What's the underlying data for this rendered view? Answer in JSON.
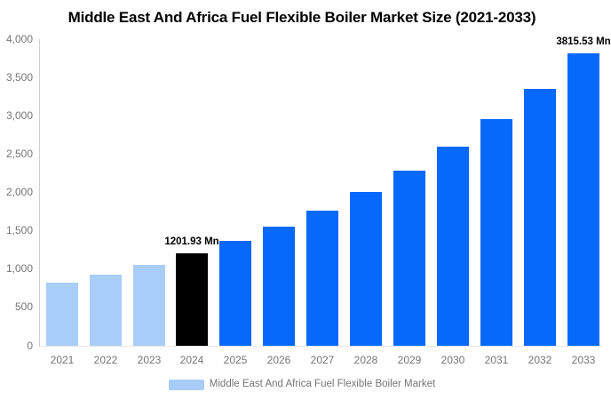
{
  "title": "Middle East And Africa Fuel Flexible Boiler Market Size (2021-2033)",
  "legend": {
    "label": "Middle East And Africa Fuel Flexible Boiler Market"
  },
  "colors": {
    "historical": "#a8cdf8",
    "current": "#000000",
    "forecast": "#0768fc",
    "title_text": "#000000",
    "tick_text": "#757575",
    "data_label_text": "#000000",
    "y_axis_line": "#cfcfcf",
    "x_axis_line": "#e6e6e6",
    "background": "#ffffff"
  },
  "y_axis": {
    "tick_labels": [
      "4,000",
      "3,500",
      "3,000",
      "2,500",
      "2,000",
      "1,500",
      "1,000",
      "500",
      "0"
    ]
  },
  "chart_data": {
    "type": "bar",
    "title": "Middle East And Africa Fuel Flexible Boiler Market Size (2021-2033)",
    "unit": "Mn",
    "categories": [
      "2021",
      "2022",
      "2023",
      "2024",
      "2025",
      "2026",
      "2027",
      "2028",
      "2029",
      "2030",
      "2031",
      "2032",
      "2033"
    ],
    "series": [
      {
        "name": "Middle East And Africa Fuel Flexible Boiler Market",
        "values": [
          818,
          930,
          1057,
          1201.93,
          1367,
          1554,
          1767,
          2008,
          2284,
          2596,
          2952,
          3356,
          3815.53
        ]
      }
    ],
    "point_colors": [
      "historical",
      "historical",
      "historical",
      "current",
      "forecast",
      "forecast",
      "forecast",
      "forecast",
      "forecast",
      "forecast",
      "forecast",
      "forecast",
      "forecast"
    ],
    "data_labels": [
      {
        "category": "2024",
        "text": "1201.93 Mn"
      },
      {
        "category": "2033",
        "text": "3815.53 Mn"
      }
    ],
    "ylim": [
      0,
      4000
    ],
    "ytick_step": 500,
    "grid": false,
    "legend_position": "bottom",
    "xlabel": "",
    "ylabel": ""
  }
}
